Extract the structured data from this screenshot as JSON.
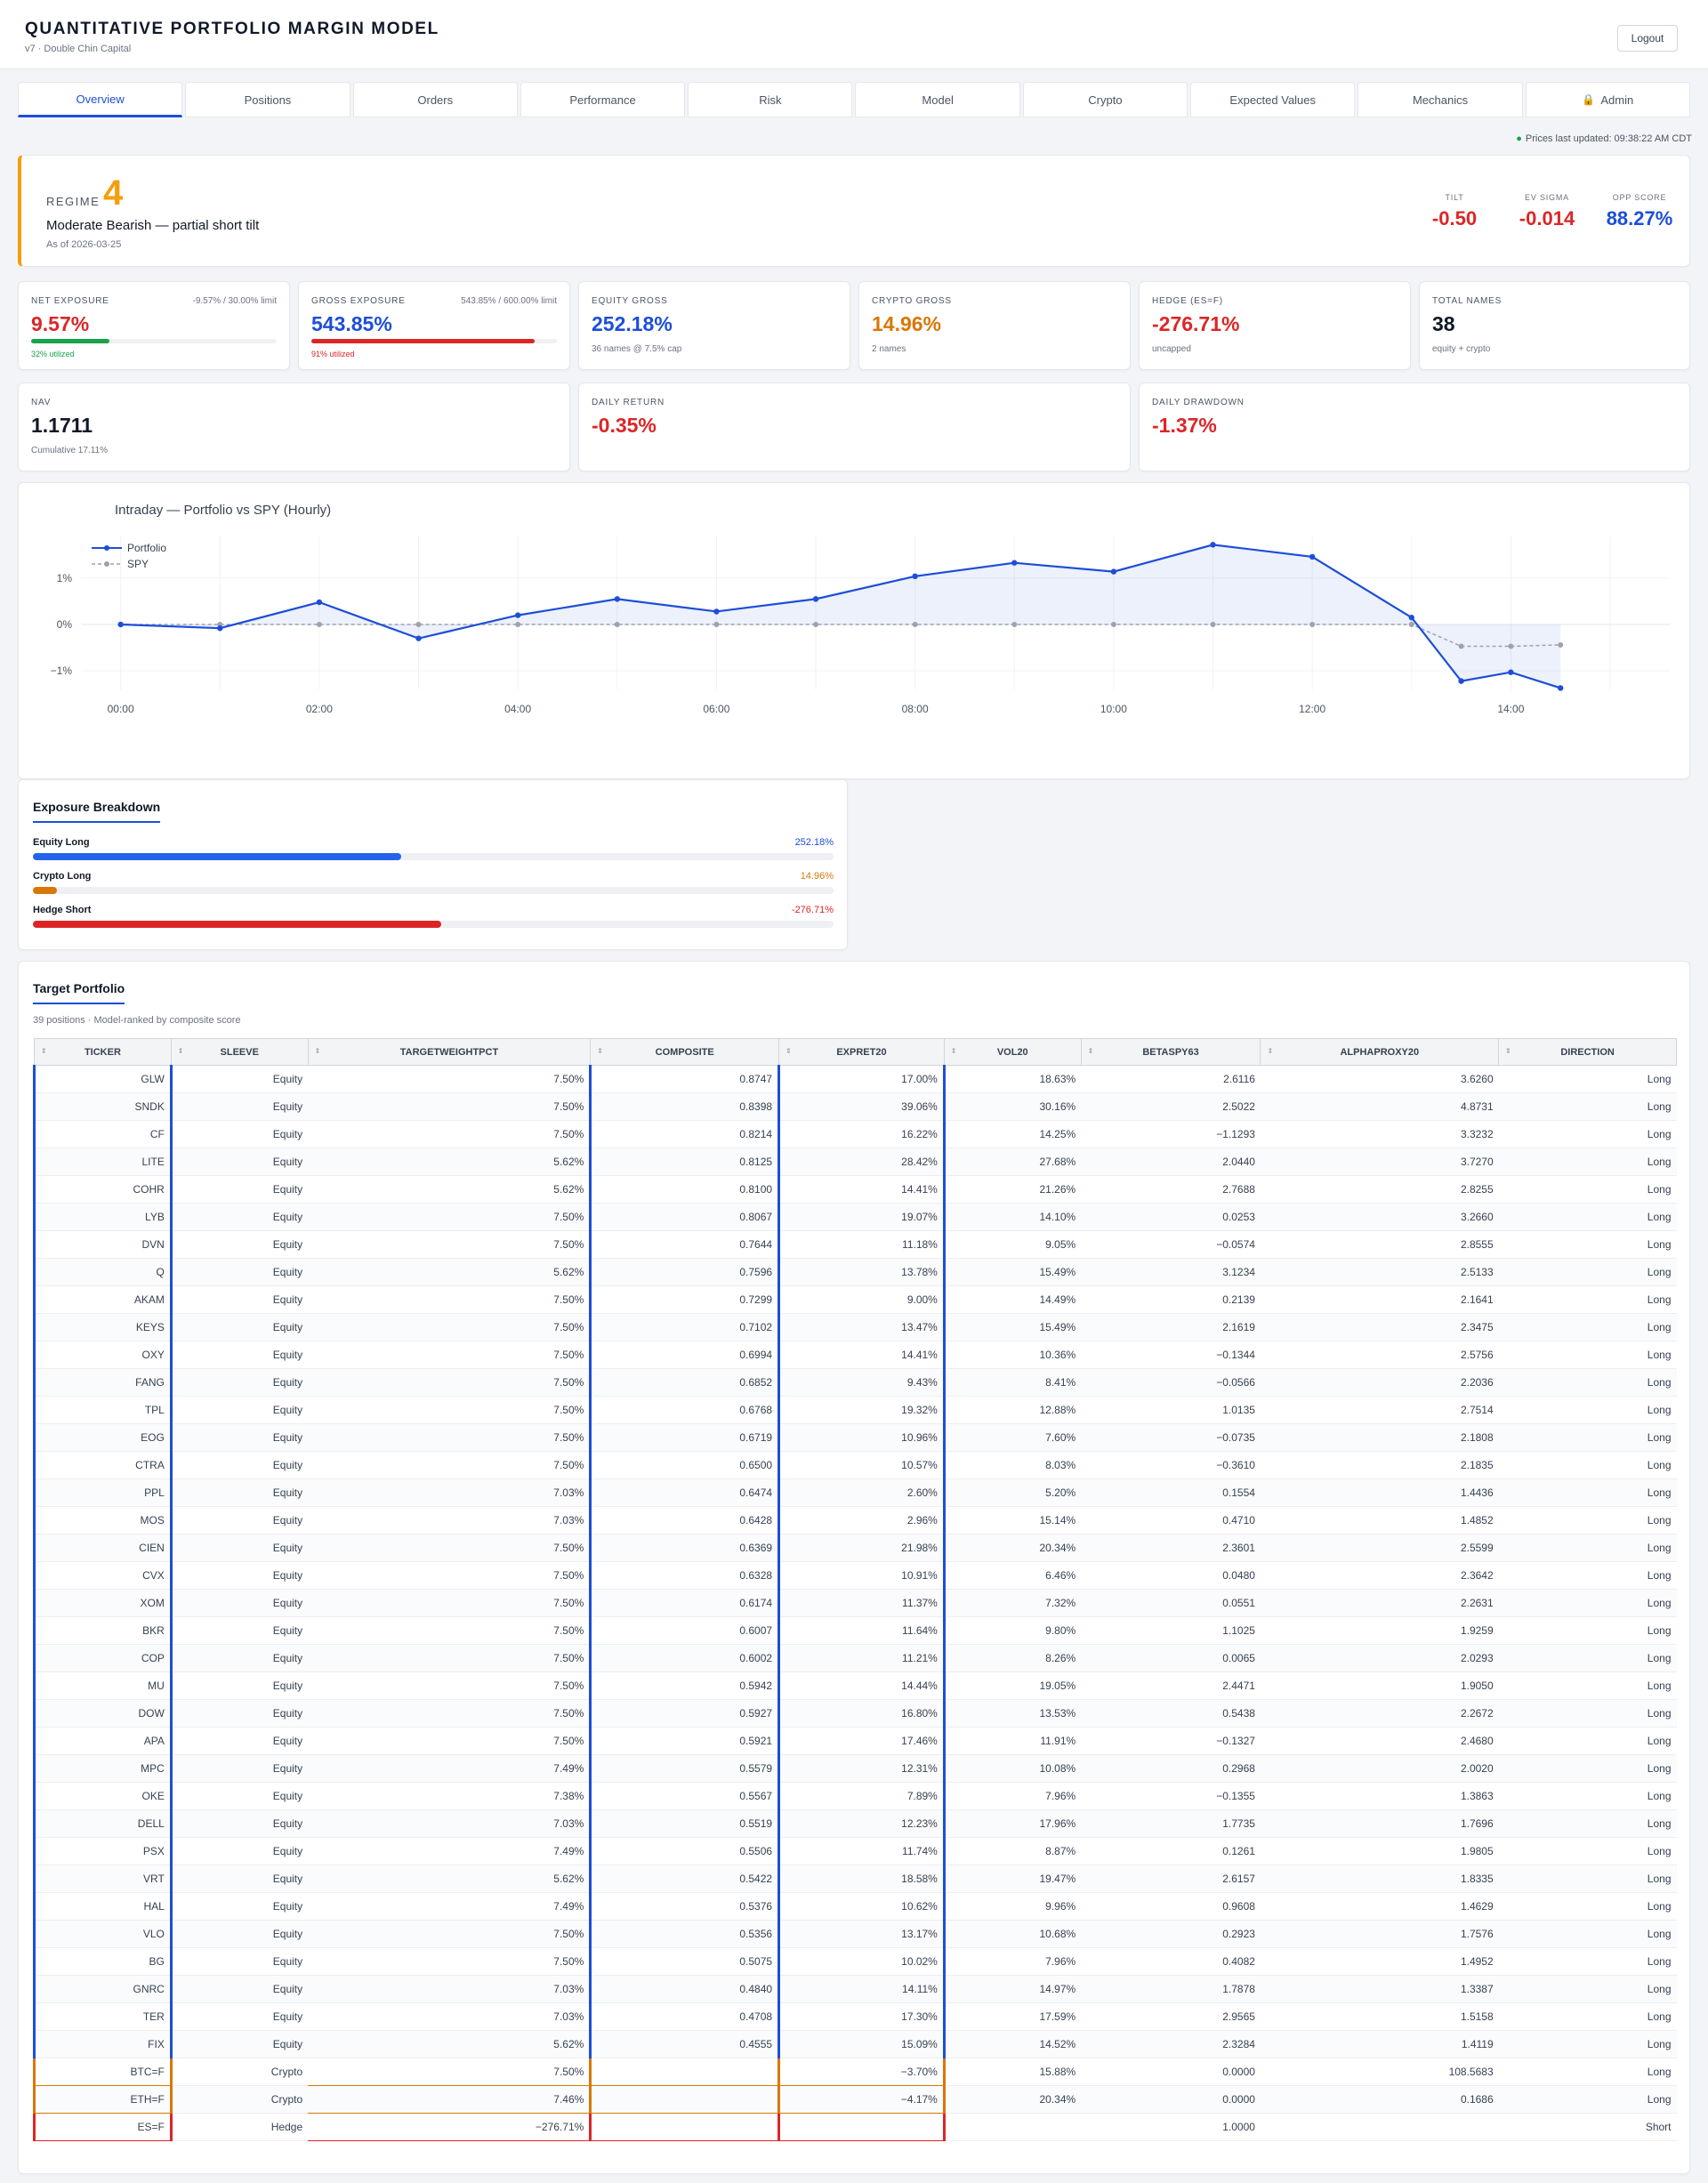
{
  "header": {
    "title": "QUANTITATIVE PORTFOLIO MARGIN MODEL",
    "subtitle": "v7 · Double Chin Capital",
    "logout_label": "Logout"
  },
  "tabs": [
    "Overview",
    "Positions",
    "Orders",
    "Performance",
    "Risk",
    "Model",
    "Crypto",
    "Expected Values",
    "Mechanics",
    "Admin"
  ],
  "active_tab": "Overview",
  "prices_updated": "Prices last updated: 09:38:22 AM CDT",
  "regime": {
    "label": "REGIME",
    "number": "4",
    "description": "Moderate Bearish — partial short tilt",
    "as_of": "As of 2026-03-25",
    "metrics": [
      {
        "label": "TILT",
        "value": "-0.50",
        "color": "#dc2626"
      },
      {
        "label": "EV SIGMA",
        "value": "-0.014",
        "color": "#dc2626"
      },
      {
        "label": "OPP SCORE",
        "value": "88.27%",
        "color": "#1d4ed8"
      }
    ]
  },
  "stats": {
    "net_exposure": {
      "label": "NET EXPOSURE",
      "limit": "-9.57% / 30.00% limit",
      "value": "9.57%",
      "util": "32% utilized",
      "util_fraction": 0.32
    },
    "gross_exposure": {
      "label": "GROSS EXPOSURE",
      "limit": "543.85% / 600.00% limit",
      "value": "543.85%",
      "util": "91% utilized",
      "util_fraction": 0.91
    },
    "equity_gross": {
      "label": "EQUITY GROSS",
      "value": "252.18%",
      "sub": "36 names @ 7.5% cap"
    },
    "crypto_gross": {
      "label": "CRYPTO GROSS",
      "value": "14.96%",
      "sub": "2 names"
    },
    "hedge": {
      "label": "HEDGE (ES=F)",
      "value": "-276.71%",
      "sub": "uncapped"
    },
    "total_names": {
      "label": "TOTAL NAMES",
      "value": "38",
      "sub": "equity + crypto"
    },
    "nav": {
      "label": "NAV",
      "value": "1.1711",
      "sub": "Cumulative 17.11%"
    },
    "daily_return": {
      "label": "DAILY RETURN",
      "value": "-0.35%"
    },
    "daily_drawdown": {
      "label": "DAILY DRAWDOWN",
      "value": "-1.37%"
    }
  },
  "chart_data": {
    "type": "line",
    "title": "Intraday — Portfolio vs SPY (Hourly)",
    "legend": [
      "Portfolio",
      "SPY"
    ],
    "legend_position": "top-left",
    "x_ticks": [
      "00:00",
      "02:00",
      "04:00",
      "06:00",
      "08:00",
      "10:00",
      "12:00",
      "14:00"
    ],
    "y_ticks": [
      "1%",
      "0%",
      "−1%"
    ],
    "ylim": [
      -1.4,
      1.9
    ],
    "xlim": [
      -0.4,
      15.6
    ],
    "grid": true,
    "series": [
      {
        "name": "Portfolio",
        "color": "#1d4ed8",
        "x": [
          0,
          1,
          2,
          3,
          4,
          5,
          6,
          7,
          8,
          9,
          10,
          11,
          12,
          13,
          13.5,
          14,
          14.5
        ],
        "values": [
          0.0,
          -0.08,
          0.48,
          -0.3,
          0.2,
          0.55,
          0.28,
          0.55,
          1.04,
          1.33,
          1.14,
          1.72,
          1.46,
          0.15,
          -1.22,
          -1.03,
          -1.37
        ]
      },
      {
        "name": "SPY",
        "color": "#9ca3af",
        "x": [
          0,
          1,
          2,
          3,
          4,
          5,
          6,
          7,
          8,
          9,
          10,
          11,
          12,
          13,
          13.5,
          14,
          14.5
        ],
        "values": [
          0,
          0,
          0,
          0,
          0,
          0,
          0,
          0,
          0,
          0,
          0,
          0,
          0,
          0,
          -0.47,
          -0.47,
          -0.44
        ]
      }
    ]
  },
  "exposure_breakdown": {
    "title": "Exposure Breakdown",
    "rows": [
      {
        "name": "Equity Long",
        "value": "252.18%",
        "fraction": 0.44,
        "color": "#2563eb"
      },
      {
        "name": "Crypto Long",
        "value": "14.96%",
        "fraction": 0.03,
        "color": "#d97706"
      },
      {
        "name": "Hedge Short",
        "value": "-276.71%",
        "fraction": 0.49,
        "color": "#dc2626"
      }
    ]
  },
  "target_portfolio": {
    "title": "Target Portfolio",
    "subtitle": "39 positions · Model-ranked by composite score",
    "columns": [
      "TICKER",
      "SLEEVE",
      "TARGETWEIGHTPCT",
      "COMPOSITE",
      "EXPRET20",
      "VOL20",
      "BETASPY63",
      "ALPHAPROXY20",
      "DIRECTION"
    ],
    "rows": [
      [
        "GLW",
        "Equity",
        "7.50%",
        "0.8747",
        "17.00%",
        "18.63%",
        "2.6116",
        "3.6260",
        "Long"
      ],
      [
        "SNDK",
        "Equity",
        "7.50%",
        "0.8398",
        "39.06%",
        "30.16%",
        "2.5022",
        "4.8731",
        "Long"
      ],
      [
        "CF",
        "Equity",
        "7.50%",
        "0.8214",
        "16.22%",
        "14.25%",
        "−1.1293",
        "3.3232",
        "Long"
      ],
      [
        "LITE",
        "Equity",
        "5.62%",
        "0.8125",
        "28.42%",
        "27.68%",
        "2.0440",
        "3.7270",
        "Long"
      ],
      [
        "COHR",
        "Equity",
        "5.62%",
        "0.8100",
        "14.41%",
        "21.26%",
        "2.7688",
        "2.8255",
        "Long"
      ],
      [
        "LYB",
        "Equity",
        "7.50%",
        "0.8067",
        "19.07%",
        "14.10%",
        "0.0253",
        "3.2660",
        "Long"
      ],
      [
        "DVN",
        "Equity",
        "7.50%",
        "0.7644",
        "11.18%",
        "9.05%",
        "−0.0574",
        "2.8555",
        "Long"
      ],
      [
        "Q",
        "Equity",
        "5.62%",
        "0.7596",
        "13.78%",
        "15.49%",
        "3.1234",
        "2.5133",
        "Long"
      ],
      [
        "AKAM",
        "Equity",
        "7.50%",
        "0.7299",
        "9.00%",
        "14.49%",
        "0.2139",
        "2.1641",
        "Long"
      ],
      [
        "KEYS",
        "Equity",
        "7.50%",
        "0.7102",
        "13.47%",
        "15.49%",
        "2.1619",
        "2.3475",
        "Long"
      ],
      [
        "OXY",
        "Equity",
        "7.50%",
        "0.6994",
        "14.41%",
        "10.36%",
        "−0.1344",
        "2.5756",
        "Long"
      ],
      [
        "FANG",
        "Equity",
        "7.50%",
        "0.6852",
        "9.43%",
        "8.41%",
        "−0.0566",
        "2.2036",
        "Long"
      ],
      [
        "TPL",
        "Equity",
        "7.50%",
        "0.6768",
        "19.32%",
        "12.88%",
        "1.0135",
        "2.7514",
        "Long"
      ],
      [
        "EOG",
        "Equity",
        "7.50%",
        "0.6719",
        "10.96%",
        "7.60%",
        "−0.0735",
        "2.1808",
        "Long"
      ],
      [
        "CTRA",
        "Equity",
        "7.50%",
        "0.6500",
        "10.57%",
        "8.03%",
        "−0.3610",
        "2.1835",
        "Long"
      ],
      [
        "PPL",
        "Equity",
        "7.03%",
        "0.6474",
        "2.60%",
        "5.20%",
        "0.1554",
        "1.4436",
        "Long"
      ],
      [
        "MOS",
        "Equity",
        "7.03%",
        "0.6428",
        "2.96%",
        "15.14%",
        "0.4710",
        "1.4852",
        "Long"
      ],
      [
        "CIEN",
        "Equity",
        "7.50%",
        "0.6369",
        "21.98%",
        "20.34%",
        "2.3601",
        "2.5599",
        "Long"
      ],
      [
        "CVX",
        "Equity",
        "7.50%",
        "0.6328",
        "10.91%",
        "6.46%",
        "0.0480",
        "2.3642",
        "Long"
      ],
      [
        "XOM",
        "Equity",
        "7.50%",
        "0.6174",
        "11.37%",
        "7.32%",
        "0.0551",
        "2.2631",
        "Long"
      ],
      [
        "BKR",
        "Equity",
        "7.50%",
        "0.6007",
        "11.64%",
        "9.80%",
        "1.1025",
        "1.9259",
        "Long"
      ],
      [
        "COP",
        "Equity",
        "7.50%",
        "0.6002",
        "11.21%",
        "8.26%",
        "0.0065",
        "2.0293",
        "Long"
      ],
      [
        "MU",
        "Equity",
        "7.50%",
        "0.5942",
        "14.44%",
        "19.05%",
        "2.4471",
        "1.9050",
        "Long"
      ],
      [
        "DOW",
        "Equity",
        "7.50%",
        "0.5927",
        "16.80%",
        "13.53%",
        "0.5438",
        "2.2672",
        "Long"
      ],
      [
        "APA",
        "Equity",
        "7.50%",
        "0.5921",
        "17.46%",
        "11.91%",
        "−0.1327",
        "2.4680",
        "Long"
      ],
      [
        "MPC",
        "Equity",
        "7.49%",
        "0.5579",
        "12.31%",
        "10.08%",
        "0.2968",
        "2.0020",
        "Long"
      ],
      [
        "OKE",
        "Equity",
        "7.38%",
        "0.5567",
        "7.89%",
        "7.96%",
        "−0.1355",
        "1.3863",
        "Long"
      ],
      [
        "DELL",
        "Equity",
        "7.03%",
        "0.5519",
        "12.23%",
        "17.96%",
        "1.7735",
        "1.7696",
        "Long"
      ],
      [
        "PSX",
        "Equity",
        "7.49%",
        "0.5506",
        "11.74%",
        "8.87%",
        "0.1261",
        "1.9805",
        "Long"
      ],
      [
        "VRT",
        "Equity",
        "5.62%",
        "0.5422",
        "18.58%",
        "19.47%",
        "2.6157",
        "1.8335",
        "Long"
      ],
      [
        "HAL",
        "Equity",
        "7.49%",
        "0.5376",
        "10.62%",
        "9.96%",
        "0.9608",
        "1.4629",
        "Long"
      ],
      [
        "VLO",
        "Equity",
        "7.50%",
        "0.5356",
        "13.17%",
        "10.68%",
        "0.2923",
        "1.7576",
        "Long"
      ],
      [
        "BG",
        "Equity",
        "7.50%",
        "0.5075",
        "10.02%",
        "7.96%",
        "0.4082",
        "1.4952",
        "Long"
      ],
      [
        "GNRC",
        "Equity",
        "7.03%",
        "0.4840",
        "14.11%",
        "14.97%",
        "1.7878",
        "1.3387",
        "Long"
      ],
      [
        "TER",
        "Equity",
        "7.03%",
        "0.4708",
        "17.30%",
        "17.59%",
        "2.9565",
        "1.5158",
        "Long"
      ],
      [
        "FIX",
        "Equity",
        "5.62%",
        "0.4555",
        "15.09%",
        "14.52%",
        "2.3284",
        "1.4119",
        "Long"
      ],
      [
        "BTC=F",
        "Crypto",
        "7.50%",
        "",
        "−3.70%",
        "15.88%",
        "0.0000",
        "108.5683",
        "Long"
      ],
      [
        "ETH=F",
        "Crypto",
        "7.46%",
        "",
        "−4.17%",
        "20.34%",
        "0.0000",
        "0.1686",
        "Long"
      ],
      [
        "ES=F",
        "Hedge",
        "−276.71%",
        "",
        "",
        "",
        "1.0000",
        "",
        "Short"
      ]
    ]
  }
}
